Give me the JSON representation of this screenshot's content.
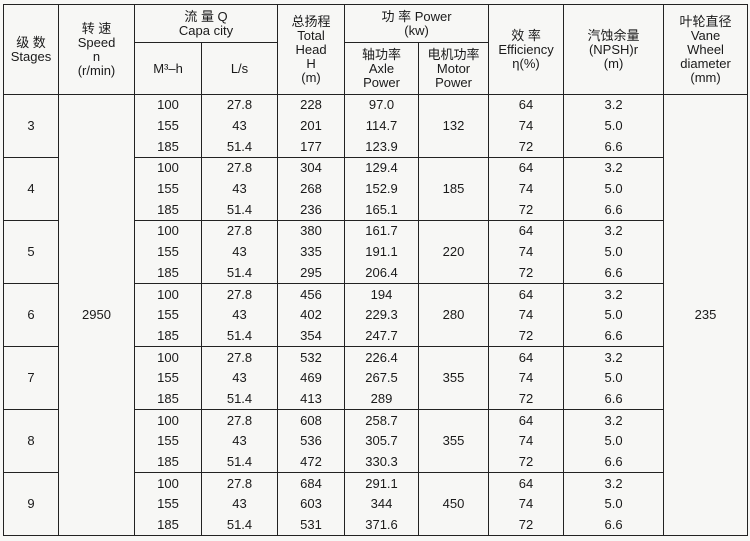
{
  "headers": {
    "stages_cn": "级 数",
    "stages_en": "Stages",
    "speed_cn": "转 速",
    "speed_en": "Speed",
    "speed_sym": "n",
    "speed_unit": "(r/min)",
    "capacity_cn": "流 量 Q",
    "capacity_en": "Capa city",
    "capacity_m3h": "M³–h",
    "capacity_ls": "L/s",
    "head_cn": "总扬程",
    "head_en1": "Total",
    "head_en2": "Head",
    "head_sym": "H",
    "head_unit": "(m)",
    "power_cn": "功 率 Power",
    "power_unit": "(kw)",
    "axle_cn": "轴功率",
    "axle_en1": "Axle",
    "axle_en2": "Power",
    "motor_cn": "电机功率",
    "motor_en1": "Motor",
    "motor_en2": "Power",
    "eff_cn": "效 率",
    "eff_en": "Efficiency",
    "eff_unit": "η(%)",
    "npsh_cn": "汽蚀余量",
    "npsh_en": "(NPSH)r",
    "npsh_unit": "(m)",
    "vane_cn": "叶轮直径",
    "vane_en1": "Vane",
    "vane_en2": "Wheel",
    "vane_en3": "diameter",
    "vane_unit": "(mm)"
  },
  "speed": "2950",
  "vane_diameter": "235",
  "groups": [
    {
      "stage": "3",
      "motor": "132",
      "rows": [
        {
          "m3h": "100",
          "ls": "27.8",
          "head": "228",
          "axle": "97.0",
          "eff": "64",
          "npsh": "3.2"
        },
        {
          "m3h": "155",
          "ls": "43",
          "head": "201",
          "axle": "114.7",
          "eff": "74",
          "npsh": "5.0"
        },
        {
          "m3h": "185",
          "ls": "51.4",
          "head": "177",
          "axle": "123.9",
          "eff": "72",
          "npsh": "6.6"
        }
      ]
    },
    {
      "stage": "4",
      "motor": "185",
      "rows": [
        {
          "m3h": "100",
          "ls": "27.8",
          "head": "304",
          "axle": "129.4",
          "eff": "64",
          "npsh": "3.2"
        },
        {
          "m3h": "155",
          "ls": "43",
          "head": "268",
          "axle": "152.9",
          "eff": "74",
          "npsh": "5.0"
        },
        {
          "m3h": "185",
          "ls": "51.4",
          "head": "236",
          "axle": "165.1",
          "eff": "72",
          "npsh": "6.6"
        }
      ]
    },
    {
      "stage": "5",
      "motor": "220",
      "rows": [
        {
          "m3h": "100",
          "ls": "27.8",
          "head": "380",
          "axle": "161.7",
          "eff": "64",
          "npsh": "3.2"
        },
        {
          "m3h": "155",
          "ls": "43",
          "head": "335",
          "axle": "191.1",
          "eff": "74",
          "npsh": "5.0"
        },
        {
          "m3h": "185",
          "ls": "51.4",
          "head": "295",
          "axle": "206.4",
          "eff": "72",
          "npsh": "6.6"
        }
      ]
    },
    {
      "stage": "6",
      "motor": "280",
      "rows": [
        {
          "m3h": "100",
          "ls": "27.8",
          "head": "456",
          "axle": "194",
          "eff": "64",
          "npsh": "3.2"
        },
        {
          "m3h": "155",
          "ls": "43",
          "head": "402",
          "axle": "229.3",
          "eff": "74",
          "npsh": "5.0"
        },
        {
          "m3h": "185",
          "ls": "51.4",
          "head": "354",
          "axle": "247.7",
          "eff": "72",
          "npsh": "6.6"
        }
      ]
    },
    {
      "stage": "7",
      "motor": "355",
      "rows": [
        {
          "m3h": "100",
          "ls": "27.8",
          "head": "532",
          "axle": "226.4",
          "eff": "64",
          "npsh": "3.2"
        },
        {
          "m3h": "155",
          "ls": "43",
          "head": "469",
          "axle": "267.5",
          "eff": "74",
          "npsh": "5.0"
        },
        {
          "m3h": "185",
          "ls": "51.4",
          "head": "413",
          "axle": "289",
          "eff": "72",
          "npsh": "6.6"
        }
      ]
    },
    {
      "stage": "8",
      "motor": "355",
      "rows": [
        {
          "m3h": "100",
          "ls": "27.8",
          "head": "608",
          "axle": "258.7",
          "eff": "64",
          "npsh": "3.2"
        },
        {
          "m3h": "155",
          "ls": "43",
          "head": "536",
          "axle": "305.7",
          "eff": "74",
          "npsh": "5.0"
        },
        {
          "m3h": "185",
          "ls": "51.4",
          "head": "472",
          "axle": "330.3",
          "eff": "72",
          "npsh": "6.6"
        }
      ]
    },
    {
      "stage": "9",
      "motor": "450",
      "rows": [
        {
          "m3h": "100",
          "ls": "27.8",
          "head": "684",
          "axle": "291.1",
          "eff": "64",
          "npsh": "3.2"
        },
        {
          "m3h": "155",
          "ls": "43",
          "head": "603",
          "axle": "344",
          "eff": "74",
          "npsh": "5.0"
        },
        {
          "m3h": "185",
          "ls": "51.4",
          "head": "531",
          "axle": "371.6",
          "eff": "72",
          "npsh": "6.6"
        }
      ]
    }
  ]
}
